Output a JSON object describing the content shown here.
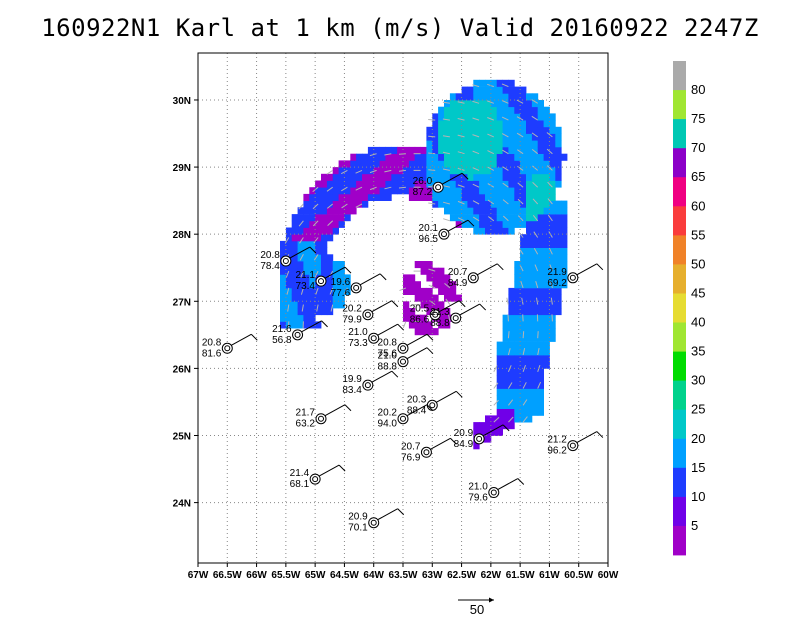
{
  "chart_data": {
    "type": "heatmap",
    "title": "160922N1 Karl at 1 km (m/s) Valid 20160922 2247Z",
    "x_ticks": [
      "67W",
      "66.5W",
      "66W",
      "65.5W",
      "65W",
      "64.5W",
      "64W",
      "63.5W",
      "63W",
      "62.5W",
      "62W",
      "61.5W",
      "61W",
      "60.5W",
      "60W"
    ],
    "y_ticks": [
      "24N",
      "25N",
      "26N",
      "27N",
      "28N",
      "29N",
      "30N"
    ],
    "xlim": [
      -67,
      -60
    ],
    "ylim": [
      23.1,
      30.7
    ],
    "grid": true,
    "colorbar": {
      "labels": [
        "5",
        "10",
        "15",
        "20",
        "25",
        "30",
        "35",
        "40",
        "45",
        "50",
        "55",
        "60",
        "65",
        "70",
        "75",
        "80"
      ],
      "colors": [
        "#a000c8",
        "#7000e8",
        "#1e3cff",
        "#00a0ff",
        "#00c8c8",
        "#00d28c",
        "#00dc00",
        "#a0e632",
        "#e6dc32",
        "#e6af2d",
        "#f08228",
        "#fa3c3c",
        "#f00082",
        "#8c00c8",
        "#00c8b4",
        "#a0e632",
        "#aaaaaa"
      ]
    },
    "reference_vector": "50",
    "observations": [
      {
        "lon": -62.9,
        "lat": 28.7,
        "t": "26.0",
        "v": "87.2"
      },
      {
        "lon": -62.8,
        "lat": 28.0,
        "t": "20.1",
        "v": "96.5"
      },
      {
        "lon": -65.5,
        "lat": 27.6,
        "t": "20.8",
        "v": "78.4"
      },
      {
        "lon": -64.9,
        "lat": 27.3,
        "t": "21.1",
        "v": "73.4"
      },
      {
        "lon": -64.3,
        "lat": 27.2,
        "t": "19.6",
        "v": "77.6"
      },
      {
        "lon": -62.3,
        "lat": 27.35,
        "t": "20.7",
        "v": "84.9"
      },
      {
        "lon": -60.6,
        "lat": 27.35,
        "t": "21.9",
        "v": "69.2"
      },
      {
        "lon": -64.1,
        "lat": 26.8,
        "t": "20.2",
        "v": "79.9"
      },
      {
        "lon": -62.95,
        "lat": 26.8,
        "t": "20.5",
        "v": "86.6"
      },
      {
        "lon": -62.6,
        "lat": 26.75,
        "t": "21.3",
        "v": "88.8"
      },
      {
        "lon": -65.3,
        "lat": 26.5,
        "t": "21.6",
        "v": "56.8"
      },
      {
        "lon": -66.5,
        "lat": 26.3,
        "t": "20.8",
        "v": "81.6"
      },
      {
        "lon": -64.0,
        "lat": 26.45,
        "t": "21.0",
        "v": "73.3"
      },
      {
        "lon": -63.5,
        "lat": 26.3,
        "t": "20.8",
        "v": "75.6"
      },
      {
        "lon": -63.5,
        "lat": 26.1,
        "t": "21.0",
        "v": "88.8"
      },
      {
        "lon": -64.1,
        "lat": 25.75,
        "t": "19.9",
        "v": "83.4"
      },
      {
        "lon": -63.0,
        "lat": 25.45,
        "t": "20.3",
        "v": "88.4"
      },
      {
        "lon": -64.9,
        "lat": 25.25,
        "t": "21.7",
        "v": "63.2"
      },
      {
        "lon": -63.5,
        "lat": 25.25,
        "t": "20.2",
        "v": "94.0"
      },
      {
        "lon": -62.2,
        "lat": 24.95,
        "t": "20.9",
        "v": "84.9"
      },
      {
        "lon": -63.1,
        "lat": 24.75,
        "t": "20.7",
        "v": "76.9"
      },
      {
        "lon": -60.6,
        "lat": 24.85,
        "t": "21.2",
        "v": "96.2"
      },
      {
        "lon": -65.0,
        "lat": 24.35,
        "t": "21.4",
        "v": "68.1"
      },
      {
        "lon": -61.95,
        "lat": 24.15,
        "t": "21.0",
        "v": "79.6"
      },
      {
        "lon": -64.0,
        "lat": 23.7,
        "t": "20.9",
        "v": "70.1"
      }
    ]
  }
}
